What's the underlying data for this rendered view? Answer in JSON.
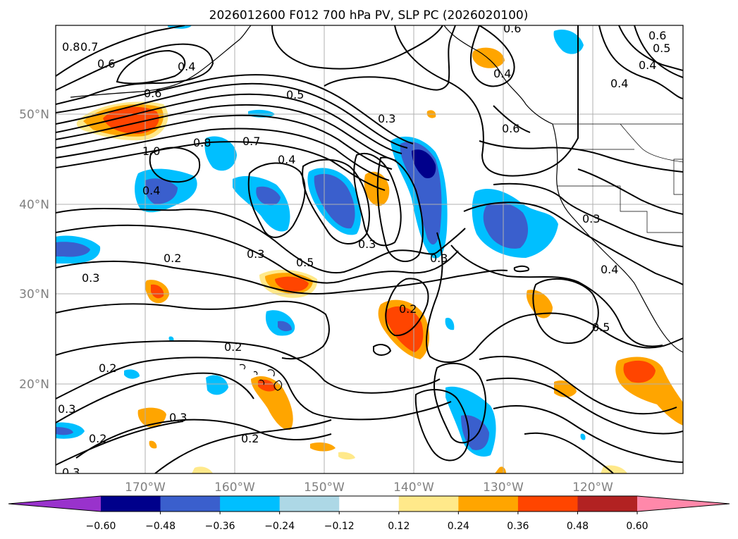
{
  "title": "2026012600 F012 700 hPa PV, SLP PC (2026020100)",
  "lon_labels": [
    "170°W",
    "160°W",
    "150°W",
    "140°W",
    "130°W",
    "120°W"
  ],
  "lat_labels": [
    "50°N",
    "40°N",
    "30°N",
    "20°N"
  ],
  "colorbar": {
    "ticks": [
      "−0.60",
      "−0.48",
      "−0.36",
      "−0.24",
      "−0.12",
      "0.12",
      "0.24",
      "0.36",
      "0.48",
      "0.60"
    ],
    "colors": [
      "#9932cc",
      "#00008b",
      "#3a5fcd",
      "#00bfff",
      "#add8e6",
      "#ffffff",
      "#ffe98a",
      "#ffa500",
      "#ff4500",
      "#b22222",
      "#ff88aa"
    ]
  },
  "contour_labels": [
    "0.8",
    "0.7",
    "0.6",
    "0.4",
    "0.6",
    "0.5",
    "0.3",
    "0.6",
    "0.8",
    "0.7",
    "1.0",
    "0.4",
    "0.4",
    "0.2",
    "0.3",
    "0.3",
    "0.5",
    "0.3",
    "0.3",
    "0.2",
    "0.2",
    "0.3",
    "0.2",
    "0.3",
    "0.2",
    "0.2",
    "0.3",
    "0.4",
    "0.6",
    "0.6",
    "0.5",
    "0.4",
    "0.4",
    "0.3",
    "0.4",
    "0.5"
  ]
}
